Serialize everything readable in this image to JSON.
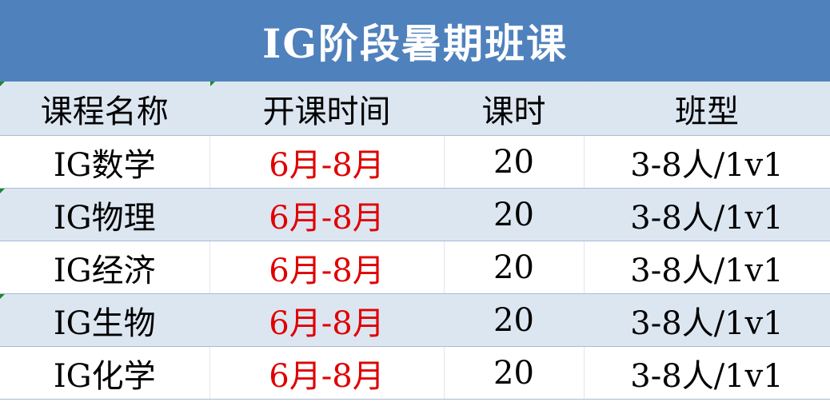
{
  "title": "IG阶段暑期班课",
  "headers": [
    "课程名称",
    "开课时间",
    "课时",
    "班型"
  ],
  "rows": [
    [
      "IG数学",
      "6月-8月",
      "20",
      "3-8人/1v1"
    ],
    [
      "IG物理",
      "6月-8月",
      "20",
      "3-8人/1v1"
    ],
    [
      "IG经济",
      "6月-8月",
      "20",
      "3-8人/1v1"
    ],
    [
      "IG生物",
      "6月-8月",
      "20",
      "3-8人/1v1"
    ],
    [
      "IG化学",
      "6月-8月",
      "20",
      "3-8人/1v1"
    ]
  ],
  "colors": {
    "title_bg": "#4f81bd",
    "band": "#dce6f1",
    "date_text": "#e00000"
  }
}
